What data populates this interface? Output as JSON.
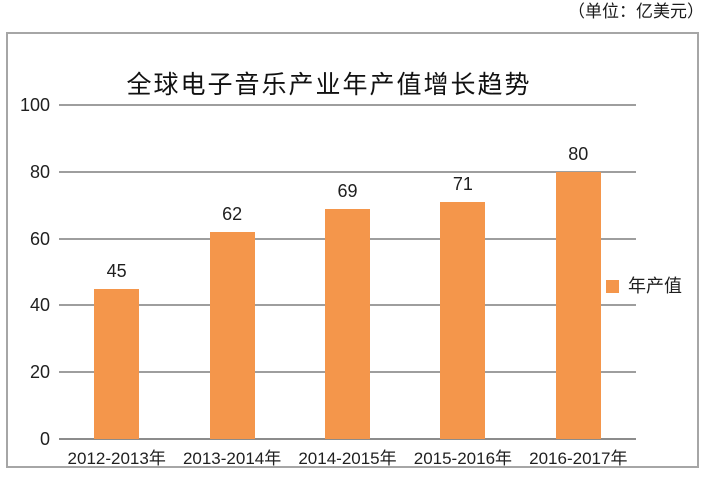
{
  "page": {
    "background": "#ffffff"
  },
  "unit_label": "（单位：亿美元）",
  "chart_data": {
    "type": "bar",
    "title": "全球电子音乐产业年产值增长趋势",
    "categories": [
      "2012-2013年",
      "2013-2014年",
      "2014-2015年",
      "2015-2016年",
      "2016-2017年"
    ],
    "series": [
      {
        "name": "年产值",
        "values": [
          45,
          62,
          69,
          71,
          80
        ]
      }
    ],
    "data_labels": [
      45,
      62,
      69,
      71,
      80
    ],
    "xlabel": "",
    "ylabel": "",
    "ylim": [
      0,
      100
    ],
    "yticks": [
      0,
      20,
      40,
      60,
      80,
      100
    ],
    "grid": true,
    "legend_position": "right-middle",
    "colors": {
      "bar": "#F4964B",
      "gridline": "#9E9E9E",
      "axis_line": "#8C8C8C",
      "frame_border": "#A6A6A6",
      "text": "#1F1F1F"
    }
  }
}
